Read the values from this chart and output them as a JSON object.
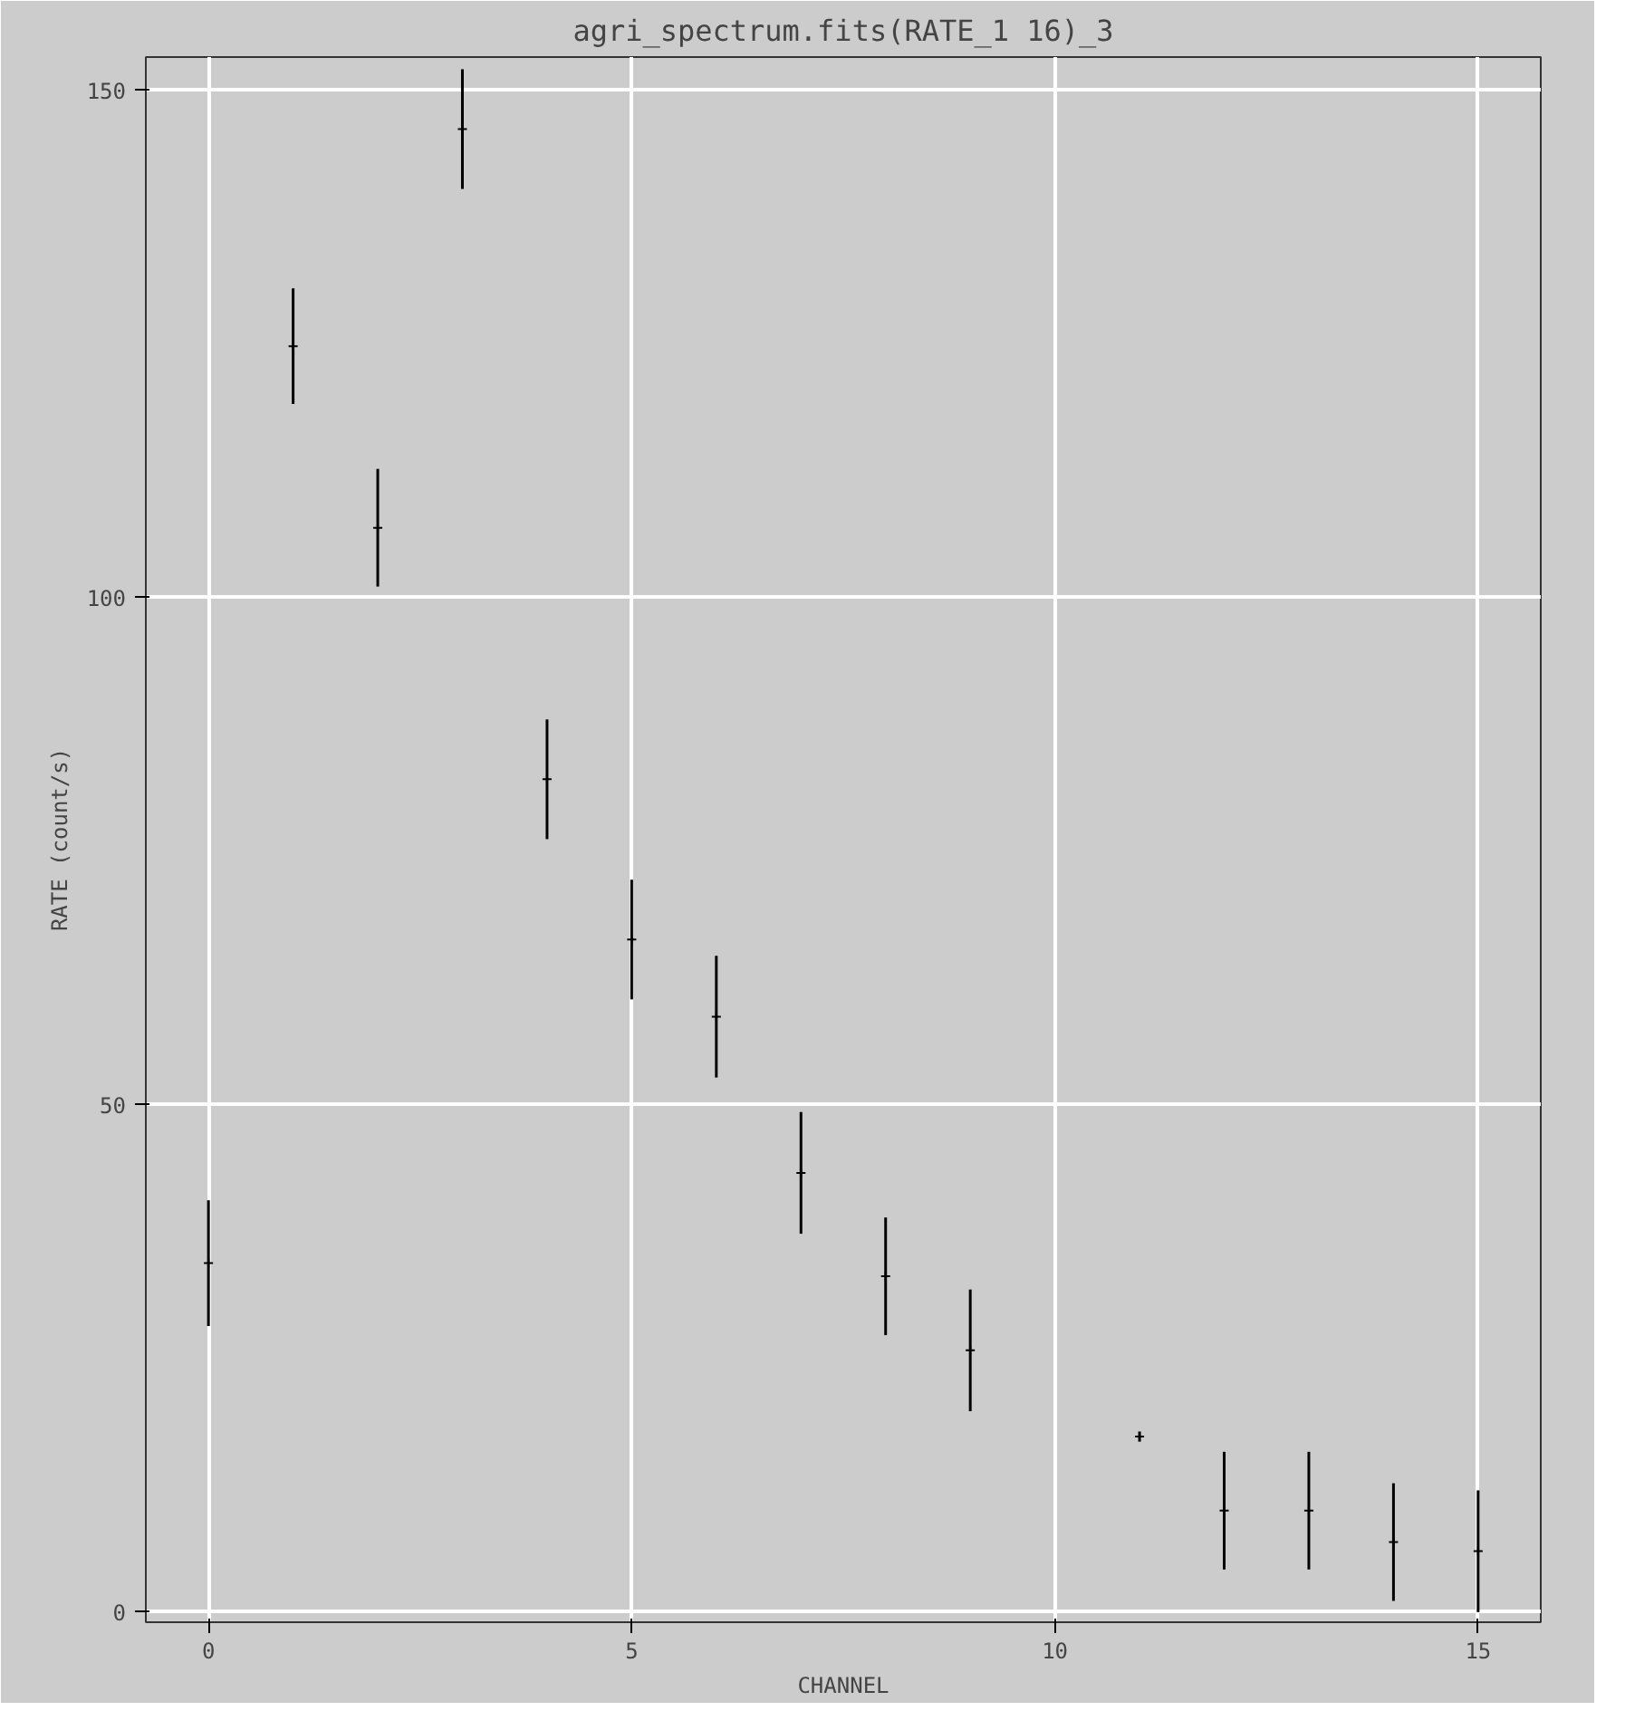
{
  "chart_data": {
    "type": "scatter",
    "title": "agri_spectrum.fits(RATE_1 16)_3",
    "xlabel": "CHANNEL",
    "ylabel": "RATE (count/s)",
    "x": [
      0,
      1,
      2,
      3,
      4,
      5,
      6,
      7,
      8,
      9,
      10,
      11,
      12,
      13,
      14,
      15
    ],
    "series": [
      {
        "color": "#000000",
        "values": [
          34.4,
          124.8,
          106.9,
          146.2,
          82.1,
          66.3,
          58.7,
          43.3,
          33.1,
          25.8,
          null,
          17.3,
          10.0,
          10.0,
          6.9,
          6.0
        ],
        "errors": [
          6.2,
          5.7,
          5.8,
          5.9,
          5.9,
          5.9,
          6.0,
          6.0,
          5.8,
          6.0,
          null,
          0.5,
          5.8,
          5.8,
          5.8,
          6.0
        ]
      }
    ],
    "marker": "cross",
    "grid": true,
    "xlim": [
      -0.74,
      15.74
    ],
    "ylim": [
      -1,
      153.3
    ],
    "xticks": [
      0,
      5,
      10,
      15
    ],
    "yticks": [
      0,
      50,
      100,
      150
    ]
  }
}
